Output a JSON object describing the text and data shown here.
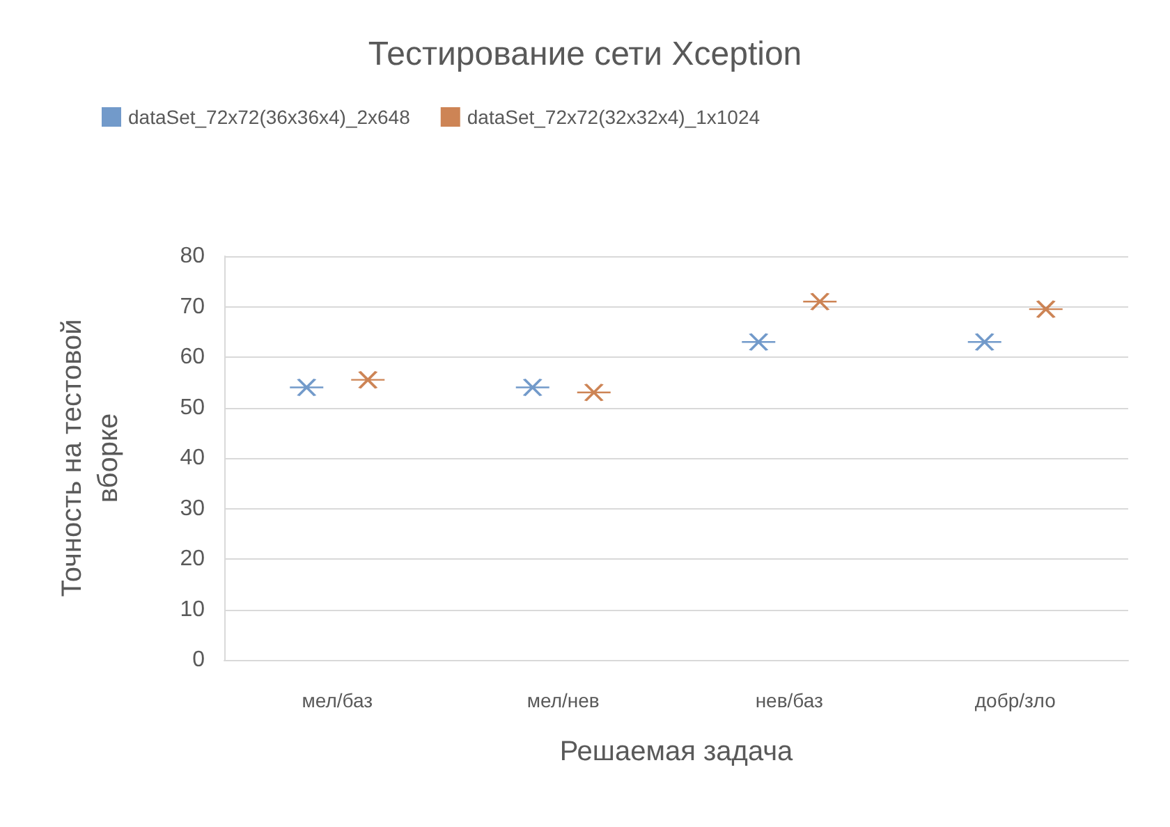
{
  "chart_data": {
    "type": "scatter",
    "title": "Тестирование сети Xception",
    "xlabel": "Решаемая задача",
    "ylabel": "Точность на тестовой вборке",
    "categories": [
      "мел/баз",
      "мел/нев",
      "нев/баз",
      "добр/зло"
    ],
    "series": [
      {
        "name": "dataSet_72x72(36x36x4)_2x648",
        "color": "#4f81bd",
        "values": [
          54,
          54,
          63,
          63
        ]
      },
      {
        "name": "dataSet_72x72(32x32x4)_1x1024",
        "color": "#c0652a",
        "values": [
          55.5,
          53,
          71,
          69.5
        ]
      }
    ],
    "ylim": [
      0,
      80
    ],
    "yticks": [
      0,
      10,
      20,
      30,
      40,
      50,
      60,
      70,
      80
    ],
    "grid": "y",
    "legend": "top",
    "marker": "cross"
  }
}
